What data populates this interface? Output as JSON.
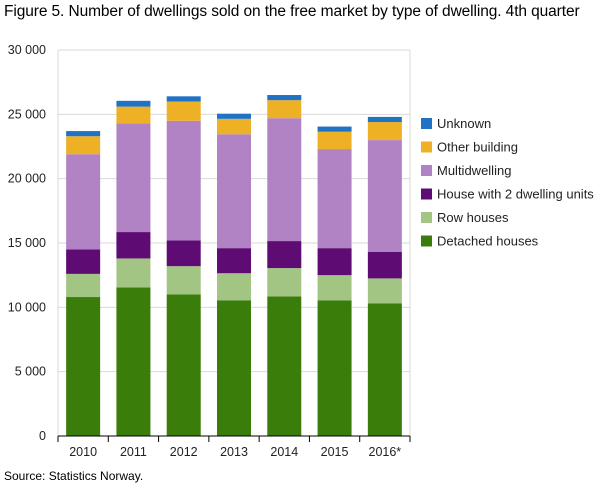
{
  "chart_data": {
    "type": "stacked-bar",
    "title": "Figure 5. Number of dwellings sold on the free market by type of dwelling. 4th quarter",
    "source": "Source: Statistics Norway.",
    "categories": [
      "2010",
      "2011",
      "2012",
      "2013",
      "2014",
      "2015",
      "2016*"
    ],
    "ylim": [
      0,
      30000
    ],
    "yticks": [
      0,
      5000,
      10000,
      15000,
      20000,
      25000,
      30000
    ],
    "ytick_labels": [
      "0",
      "5 000",
      "10 000",
      "15 000",
      "20 000",
      "25 000",
      "30 000"
    ],
    "grid": true,
    "legend_position": "right",
    "series": [
      {
        "name": "Detached houses",
        "color": "#3a7d0a",
        "values": [
          10800,
          11550,
          11000,
          10550,
          10850,
          10550,
          10300
        ]
      },
      {
        "name": "Row houses",
        "color": "#a2c584",
        "values": [
          1800,
          2250,
          2200,
          2100,
          2200,
          1950,
          1950
        ]
      },
      {
        "name": "House with 2 dwelling units",
        "color": "#5e0c73",
        "values": [
          1900,
          2050,
          2000,
          1950,
          2100,
          2100,
          2050
        ]
      },
      {
        "name": "Multidwelling",
        "color": "#b183c4",
        "values": [
          7400,
          8450,
          9300,
          8850,
          9550,
          7700,
          8700
        ]
      },
      {
        "name": "Other building",
        "color": "#eeb025",
        "values": [
          1400,
          1300,
          1500,
          1200,
          1400,
          1350,
          1400
        ]
      },
      {
        "name": "Unknown",
        "color": "#1f72c4",
        "values": [
          400,
          450,
          400,
          400,
          400,
          400,
          400
        ]
      }
    ]
  }
}
